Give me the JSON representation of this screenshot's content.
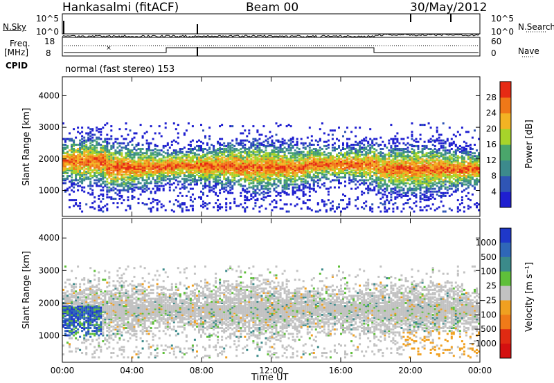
{
  "header": {
    "station": "Hankasalmi (fitACF)",
    "beam": "Beam 00",
    "date": "30/May/2012"
  },
  "left_labels": {
    "nsky": "N.Sky",
    "freq_line1": "Freq.",
    "freq_line2": "[MHz]",
    "cpid": "CPID"
  },
  "right_labels": {
    "nsearch": "N.Search",
    "nave": "Nave"
  },
  "cpid_value": "normal (fast stereo) 153",
  "axis_ticks": {
    "nsky_left": [
      "10^5",
      "10^0"
    ],
    "nsky_right": [
      "10^5",
      "10^0"
    ],
    "freq_left": [
      "18",
      "8"
    ],
    "nave_right": [
      "60",
      "0"
    ]
  },
  "chart_data": [
    {
      "type": "heatmap",
      "title": "",
      "xlabel": "Time UT",
      "ylabel": "Slant Range [km]",
      "x_ticks": [
        "00:00",
        "04:00",
        "08:00",
        "12:00",
        "16:00",
        "20:00",
        "00:00"
      ],
      "y_ticks": [
        "1000",
        "2000",
        "3000",
        "4000"
      ],
      "xlim": [
        0,
        24
      ],
      "ylim": [
        180,
        4600
      ],
      "colorbar": {
        "label": "Power [dB]",
        "ticks": [
          "4",
          "8",
          "12",
          "16",
          "20",
          "24",
          "28"
        ],
        "colors": [
          "#1f1fd0",
          "#2f55b5",
          "#3c8a8c",
          "#4aa66b",
          "#a7d42a",
          "#f3b323",
          "#f07818",
          "#e62a14"
        ]
      },
      "bands": [
        {
          "start_hr": 0,
          "end_hr": 2.5,
          "center_km": 1900,
          "level": "high"
        },
        {
          "start_hr": 2.5,
          "end_hr": 6,
          "center_km": 1700,
          "level": "high"
        },
        {
          "start_hr": 6,
          "end_hr": 10,
          "center_km": 1750,
          "level": "medium"
        },
        {
          "start_hr": 10,
          "end_hr": 14,
          "center_km": 1700,
          "level": "high"
        },
        {
          "start_hr": 14,
          "end_hr": 18,
          "center_km": 1800,
          "level": "high"
        },
        {
          "start_hr": 18,
          "end_hr": 24,
          "center_km": 1650,
          "level": "high"
        }
      ]
    },
    {
      "type": "heatmap",
      "title": "",
      "xlabel": "Time UT",
      "ylabel": "Slant Range [km]",
      "x_ticks": [
        "00:00",
        "04:00",
        "08:00",
        "12:00",
        "16:00",
        "20:00",
        "00:00"
      ],
      "y_ticks": [
        "1000",
        "2000",
        "3000",
        "4000"
      ],
      "xlim": [
        0,
        24
      ],
      "ylim": [
        180,
        4600
      ],
      "colorbar": {
        "label": "Velocity [m s⁻¹]",
        "ticks": [
          "1000",
          "500",
          "100",
          "25",
          "−25",
          "−100",
          "−500",
          "−1000"
        ],
        "colors": [
          "#1f38c9",
          "#2f67b8",
          "#3b8a8a",
          "#5fbf3a",
          "#c2c2c2",
          "#f0a020",
          "#f07a18",
          "#e02a12",
          "#d41010"
        ]
      },
      "bands": [
        {
          "start_hr": 0,
          "end_hr": 24,
          "center_km": 1750,
          "level": "ground"
        }
      ]
    }
  ]
}
